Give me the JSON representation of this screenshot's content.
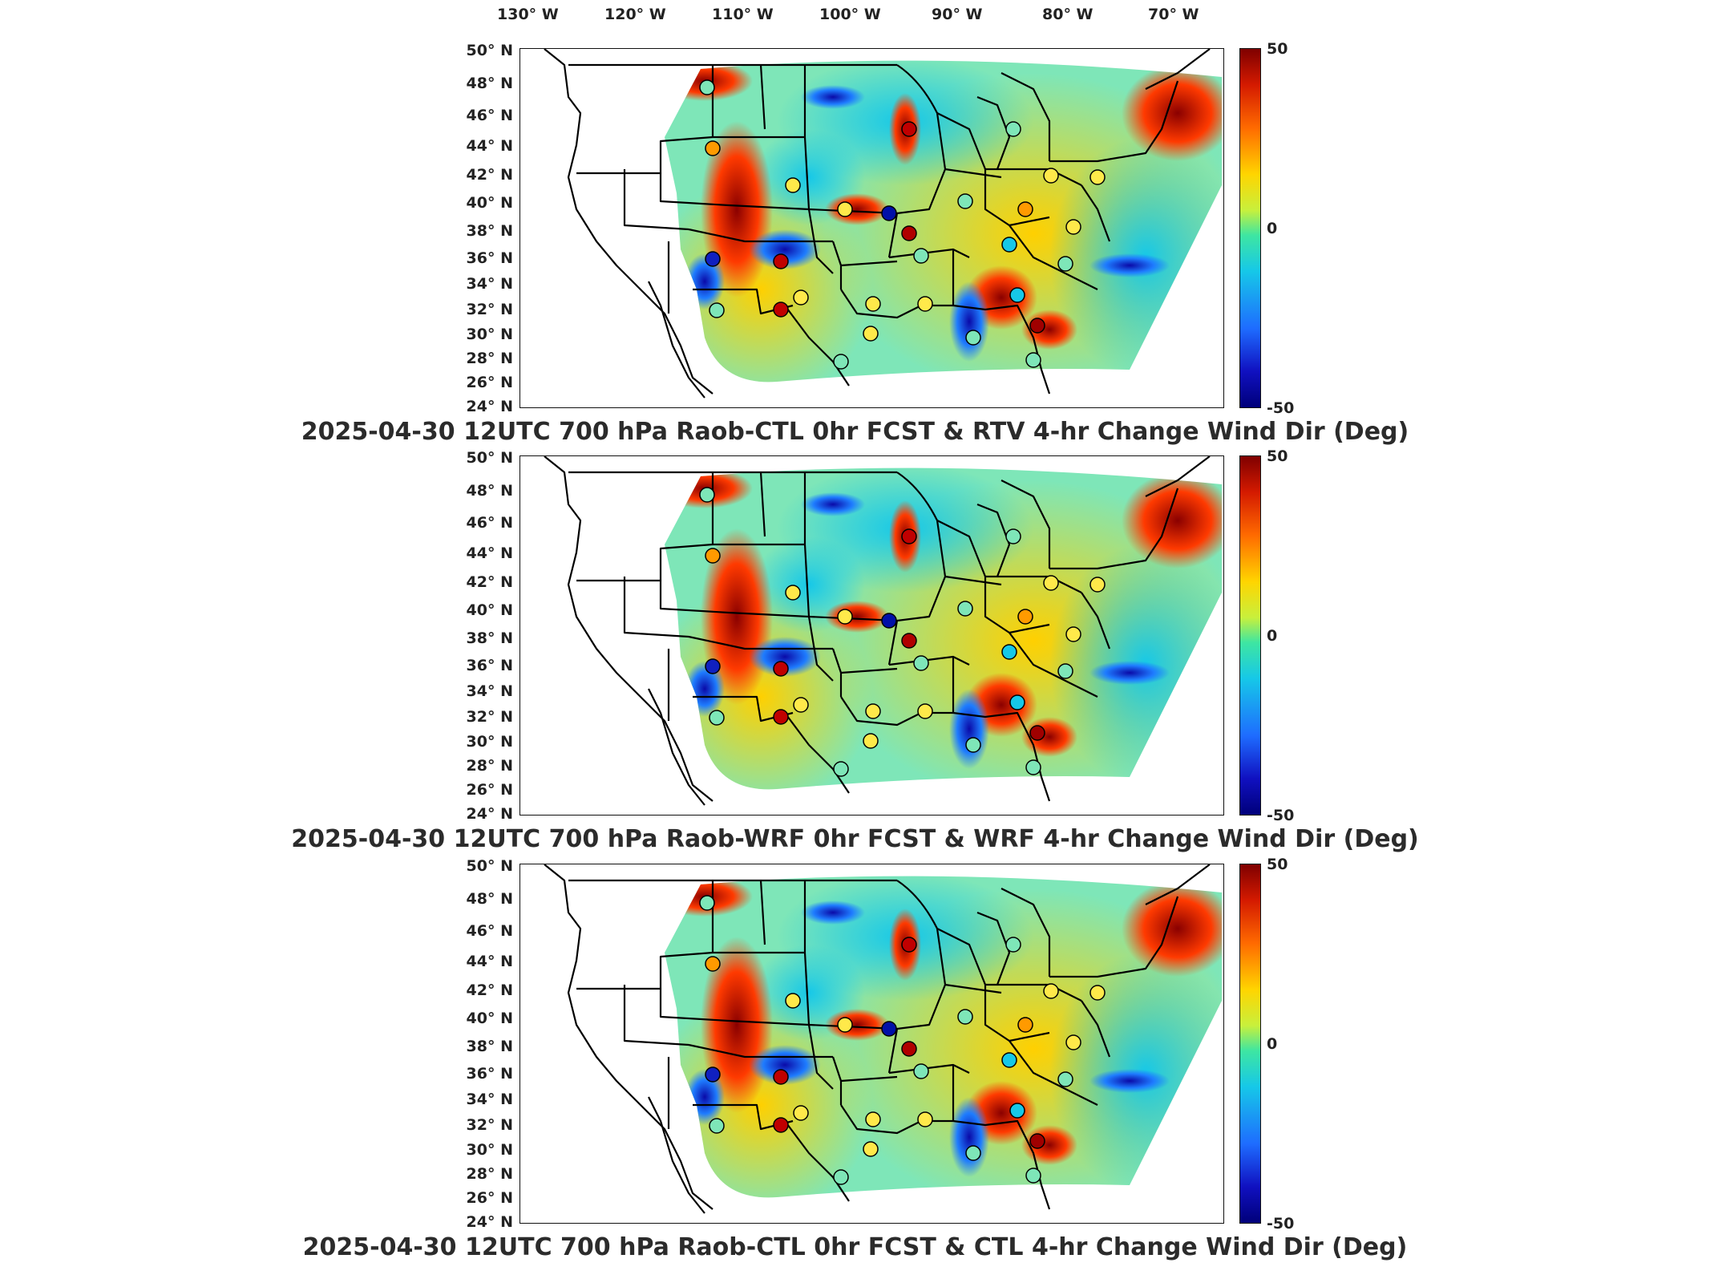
{
  "longitude_labels": [
    "130° W",
    "120° W",
    "110° W",
    "100° W",
    "90° W",
    "80° W",
    "70° W"
  ],
  "latitude_labels": [
    "50° N",
    "48° N",
    "46° N",
    "44° N",
    "42° N",
    "40° N",
    "38° N",
    "36° N",
    "34° N",
    "32° N",
    "30° N",
    "28° N",
    "26° N",
    "24° N"
  ],
  "colorbar": {
    "max_label": "50",
    "mid_label": "0",
    "min_label": "-50",
    "colors": [
      "#7f0000",
      "#d41a00",
      "#ff6a00",
      "#ffd500",
      "#c8f03c",
      "#3ee6a2",
      "#16c8e8",
      "#1e6cff",
      "#1010c0",
      "#00007a"
    ]
  },
  "panels": [
    {
      "title": "2025-04-30 12UTC 700 hPa Raob-CTL 0hr FCST & RTV 4-hr Change Wind Dir (Deg)"
    },
    {
      "title": "2025-04-30 12UTC 700 hPa Raob-WRF 0hr FCST & WRF 4-hr Change Wind Dir (Deg)"
    },
    {
      "title": "2025-04-30 12UTC 700 hPa Raob-CTL 0hr FCST & CTL 4-hr Change Wind Dir (Deg)"
    }
  ]
}
